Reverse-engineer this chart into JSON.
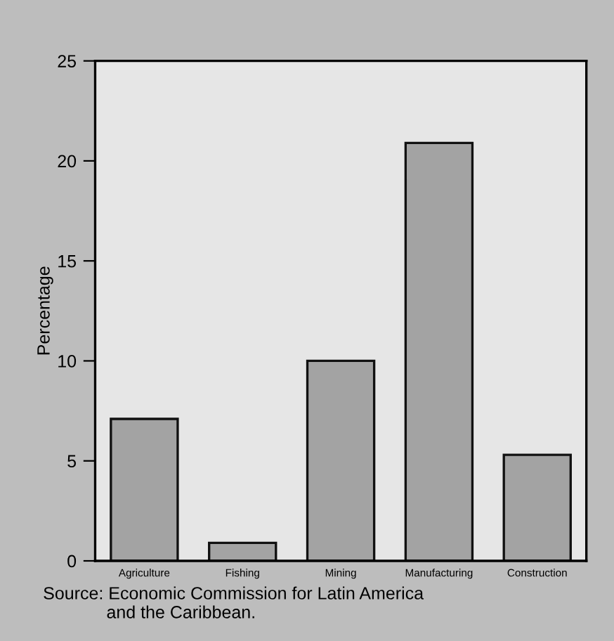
{
  "chart_data": {
    "type": "bar",
    "ylabel": "Percentage",
    "categories": [
      "Agriculture",
      "Fishing",
      "Mining",
      "Manufacturing",
      "Construction"
    ],
    "values": [
      7.1,
      0.9,
      10.0,
      20.9,
      5.3
    ],
    "color": "#a3a3a3",
    "ylim": [
      0,
      25
    ],
    "yticks": [
      0,
      5,
      10,
      15,
      20,
      25
    ],
    "grid": false,
    "annotations": [
      "Source: Economic Commission for Latin America\n             and the Caribbean."
    ]
  }
}
